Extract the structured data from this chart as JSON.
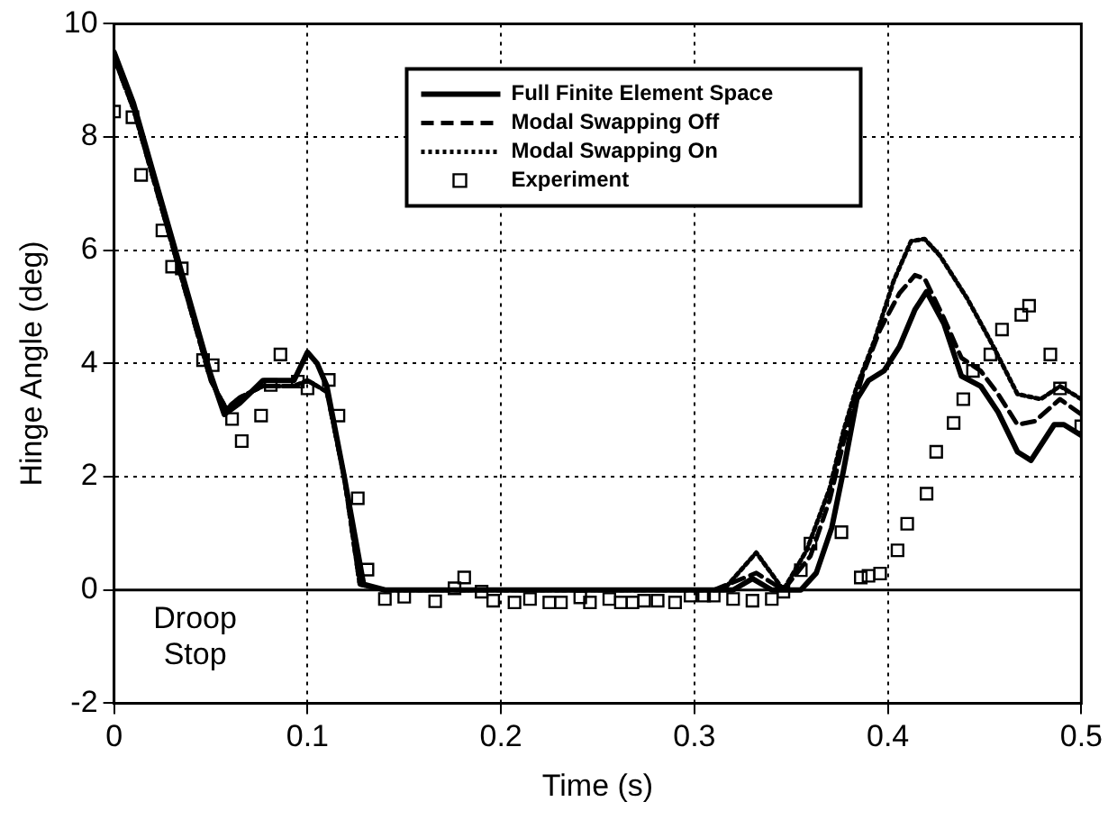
{
  "chart_data": {
    "type": "line",
    "xlabel": "Time (s)",
    "ylabel": "Hinge Angle (deg)",
    "xlim": [
      0,
      0.5
    ],
    "ylim": [
      -2,
      10
    ],
    "xticks": [
      0,
      0.1,
      0.2,
      0.3,
      0.4,
      0.5
    ],
    "yticks": [
      -2,
      0,
      2,
      4,
      6,
      8,
      10
    ],
    "grid": true,
    "legend": "top",
    "ref_lines": [
      {
        "axis": "y",
        "value": 0,
        "label": "Droop Stop",
        "color": "#000000",
        "line_style": "solid"
      }
    ],
    "series": [
      {
        "name": "Full Finite Element Space",
        "color": "#000000",
        "line_style": "solid",
        "marker": "none",
        "x": [
          0,
          0.01,
          0.02,
          0.03,
          0.04,
          0.05,
          0.057,
          0.065,
          0.077,
          0.093,
          0.1,
          0.105,
          0.11,
          0.119,
          0.129,
          0.14,
          0.2,
          0.3,
          0.32,
          0.33,
          0.34,
          0.355,
          0.363,
          0.371,
          0.377,
          0.384,
          0.39,
          0.398,
          0.406,
          0.414,
          0.42,
          0.429,
          0.438,
          0.448,
          0.457,
          0.467,
          0.474,
          0.486,
          0.491,
          0.5
        ],
        "values": [
          9.5,
          8.6,
          7.4,
          6.2,
          5.0,
          3.8,
          3.1,
          3.3,
          3.7,
          3.7,
          4.2,
          4.0,
          3.6,
          2.0,
          0.1,
          0,
          0,
          0,
          0,
          0.2,
          0,
          0,
          0.3,
          1.1,
          2.1,
          3.37,
          3.7,
          3.87,
          4.3,
          4.95,
          5.27,
          4.7,
          3.78,
          3.6,
          3.14,
          2.44,
          2.29,
          2.92,
          2.92,
          2.73
        ]
      },
      {
        "name": "Modal Swapping Off",
        "color": "#000000",
        "line_style": "dashed",
        "marker": "none",
        "x": [
          0,
          0.01,
          0.02,
          0.03,
          0.04,
          0.05,
          0.058,
          0.065,
          0.077,
          0.093,
          0.1,
          0.11,
          0.119,
          0.127,
          0.14,
          0.2,
          0.31,
          0.332,
          0.346,
          0.36,
          0.37,
          0.377,
          0.387,
          0.396,
          0.406,
          0.414,
          0.419,
          0.429,
          0.438,
          0.448,
          0.457,
          0.467,
          0.476,
          0.489,
          0.5
        ],
        "values": [
          9.4,
          8.5,
          7.3,
          6.1,
          4.9,
          3.7,
          3.2,
          3.4,
          3.6,
          3.6,
          3.7,
          3.5,
          2.0,
          0.1,
          0,
          0,
          0,
          0.3,
          0,
          0.6,
          1.6,
          2.6,
          3.8,
          4.6,
          5.24,
          5.56,
          5.5,
          4.8,
          4.1,
          3.87,
          3.46,
          2.92,
          2.98,
          3.37,
          3.1
        ]
      },
      {
        "name": "Modal Swapping On",
        "color": "#000000",
        "line_style": "dotted",
        "marker": "none",
        "x": [
          0,
          0.01,
          0.02,
          0.03,
          0.04,
          0.05,
          0.058,
          0.065,
          0.077,
          0.093,
          0.1,
          0.11,
          0.119,
          0.127,
          0.14,
          0.2,
          0.315,
          0.332,
          0.346,
          0.358,
          0.37,
          0.377,
          0.384,
          0.393,
          0.403,
          0.412,
          0.419,
          0.427,
          0.441,
          0.453,
          0.467,
          0.479,
          0.489,
          0.5
        ],
        "values": [
          9.4,
          8.5,
          7.3,
          6.1,
          4.9,
          3.7,
          3.2,
          3.4,
          3.6,
          3.6,
          3.7,
          3.5,
          2.0,
          0.1,
          0,
          0,
          0,
          0.66,
          0,
          0.7,
          1.8,
          2.8,
          3.6,
          4.4,
          5.46,
          6.16,
          6.2,
          5.9,
          5.15,
          4.4,
          3.46,
          3.37,
          3.6,
          3.37
        ]
      },
      {
        "name": "Experiment",
        "type": "scatter",
        "color": "#000000",
        "marker": "square",
        "x": [
          0,
          0.0095,
          0.014,
          0.025,
          0.03,
          0.035,
          0.046,
          0.051,
          0.061,
          0.066,
          0.076,
          0.081,
          0.086,
          0.095,
          0.1,
          0.111,
          0.116,
          0.126,
          0.131,
          0.14,
          0.15,
          0.166,
          0.176,
          0.181,
          0.19,
          0.196,
          0.207,
          0.215,
          0.225,
          0.231,
          0.241,
          0.246,
          0.256,
          0.262,
          0.268,
          0.274,
          0.281,
          0.29,
          0.298,
          0.305,
          0.31,
          0.32,
          0.33,
          0.34,
          0.346,
          0.355,
          0.36,
          0.376,
          0.386,
          0.39,
          0.396,
          0.405,
          0.41,
          0.42,
          0.425,
          0.434,
          0.439,
          0.444,
          0.453,
          0.459,
          0.469,
          0.473,
          0.484,
          0.489,
          0.5
        ],
        "values": [
          8.45,
          8.35,
          7.33,
          6.35,
          5.71,
          5.68,
          4.06,
          3.97,
          3.02,
          2.63,
          3.08,
          3.62,
          4.16,
          3.68,
          3.56,
          3.71,
          3.08,
          1.62,
          0.36,
          -0.16,
          -0.12,
          -0.2,
          0.03,
          0.22,
          -0.03,
          -0.19,
          -0.22,
          -0.16,
          -0.22,
          -0.22,
          -0.13,
          -0.22,
          -0.16,
          -0.22,
          -0.22,
          -0.19,
          -0.19,
          -0.22,
          -0.1,
          -0.1,
          -0.1,
          -0.16,
          -0.19,
          -0.16,
          -0.03,
          0.35,
          0.82,
          1.02,
          0.22,
          0.25,
          0.29,
          0.7,
          1.17,
          1.7,
          2.44,
          2.95,
          3.37,
          3.87,
          4.16,
          4.6,
          4.86,
          5.02,
          4.16,
          3.56,
          2.89
        ]
      }
    ]
  }
}
